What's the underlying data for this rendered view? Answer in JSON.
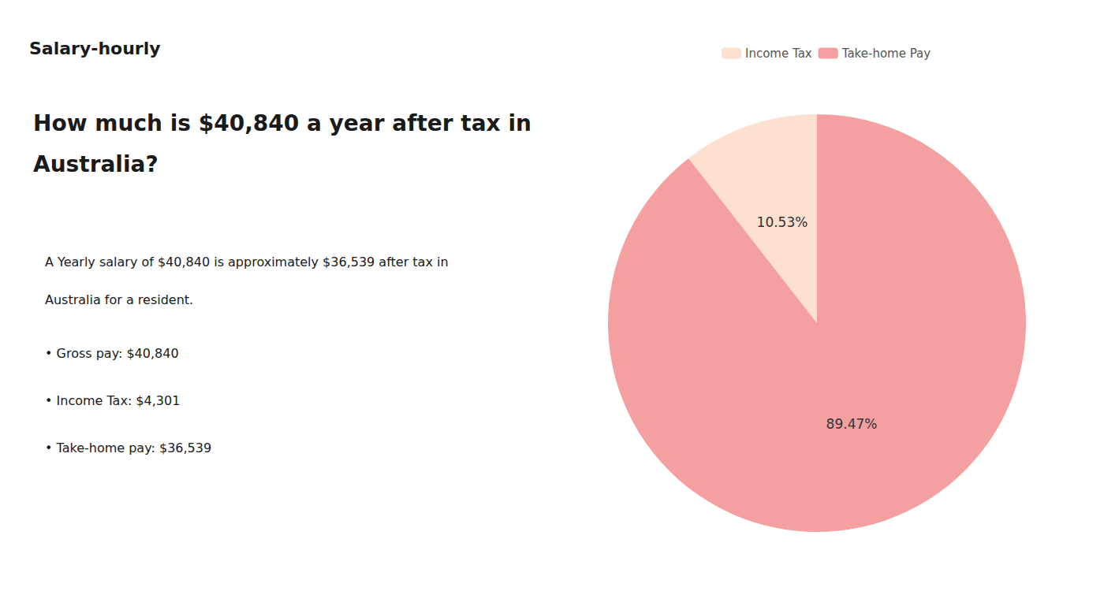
{
  "chart_data": {
    "type": "pie",
    "title": "How much is $40,840 a year after tax in\nAustralia?",
    "annotations": [
      "Salary-hourly",
      "A Yearly salary of $40,840 is approximately $36,539 after tax in",
      "Australia for a resident.",
      "• Gross pay: $40,840",
      "• Income Tax: $4,301",
      "• Take-home pay: $36,539"
    ],
    "categories": [
      "Income Tax",
      "Take-home Pay"
    ],
    "values": [
      10.53,
      89.47
    ],
    "value_labels": [
      "10.53%",
      "89.47%"
    ],
    "data_labels": true,
    "colors": [
      "#fde0d0",
      "#f4a0a0"
    ],
    "legend": "top"
  }
}
